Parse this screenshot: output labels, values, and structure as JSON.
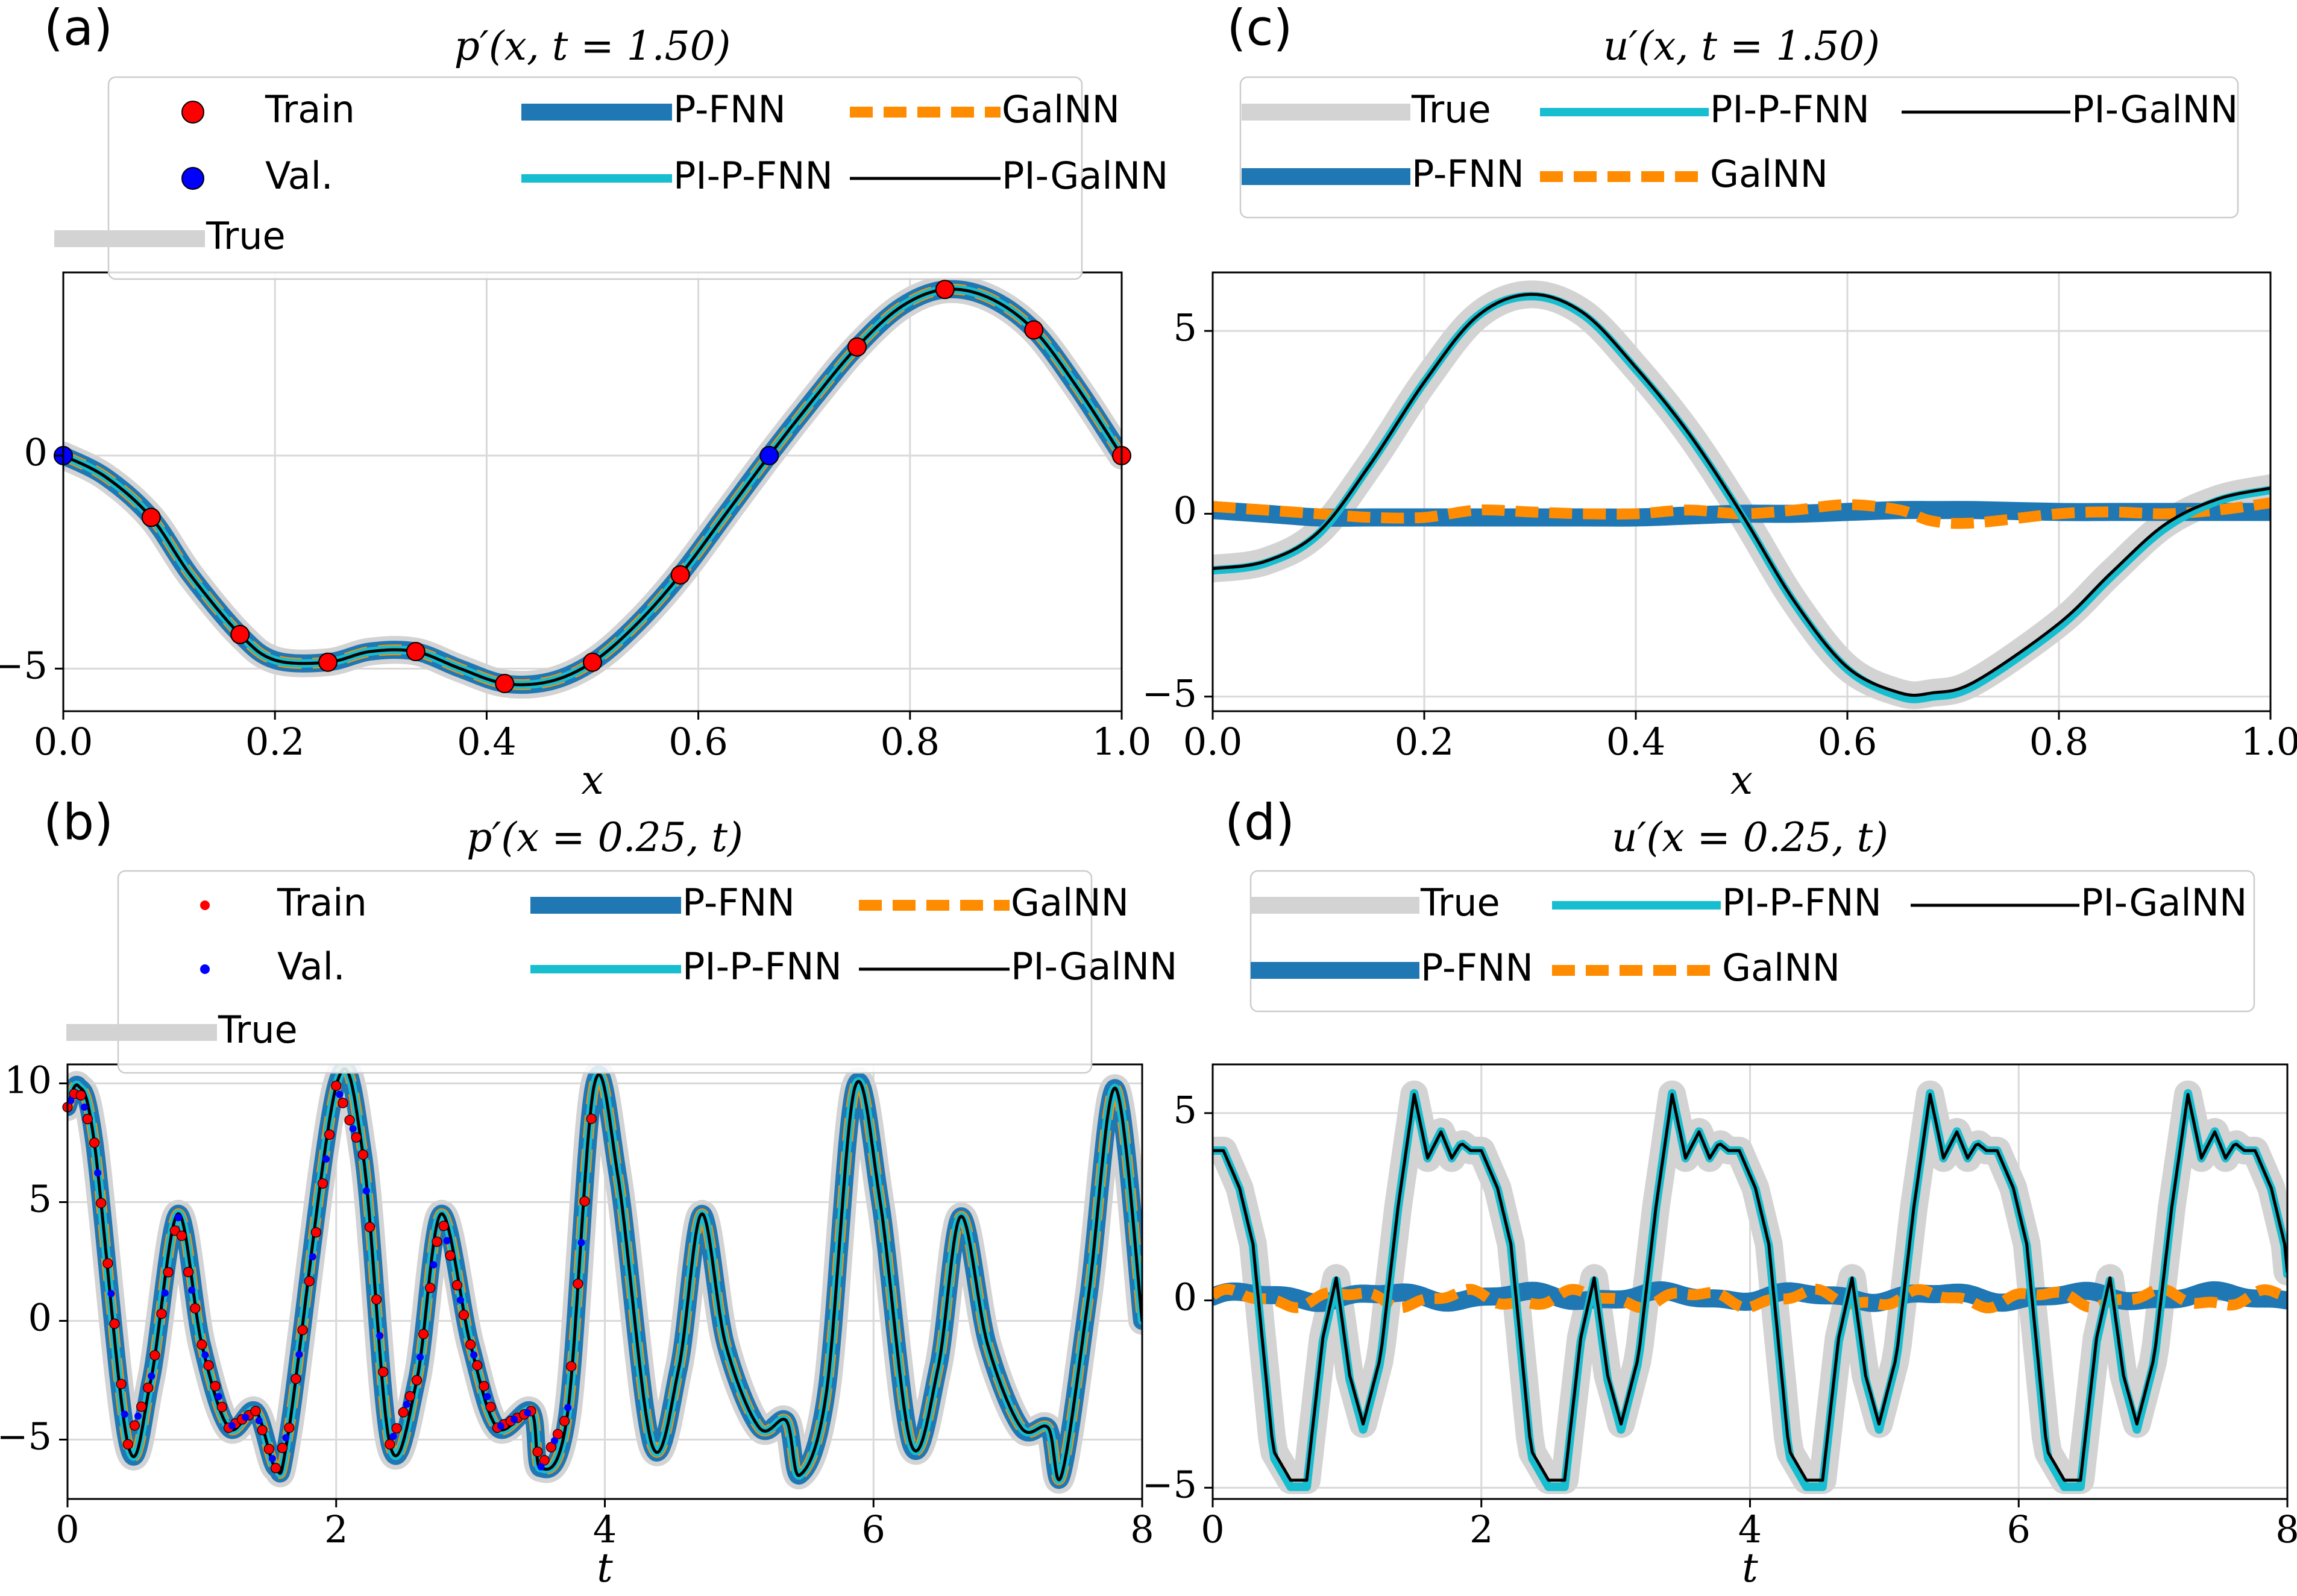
{
  "figure": {
    "colors": {
      "true": "#d3d3d3",
      "p_fnn": "#1f77b4",
      "galnn": "#ff8c00",
      "pi_p_fnn": "#17becf",
      "pi_galnn": "#000000",
      "train": "#ff0000",
      "val": "#0000ff",
      "grid": "#d9d9d9"
    }
  },
  "chart_data": [
    {
      "id": "a",
      "panel_label": "(a)",
      "type": "line",
      "title": "p′(x, t = 1.50)",
      "xlabel": "x",
      "ylabel": "",
      "xlim": [
        0,
        1
      ],
      "ylim": [
        -6,
        4.3
      ],
      "xticks": [
        0,
        0.2,
        0.4,
        0.6,
        0.8,
        1.0
      ],
      "xtick_labels": [
        "0.0",
        "0.2",
        "0.4",
        "0.6",
        "0.8",
        "1.0"
      ],
      "yticks": [
        -5,
        0
      ],
      "ytick_labels": [
        "−5",
        "0"
      ],
      "grid": true,
      "legend": {
        "placement": "top-left",
        "rows": [
          [
            {
              "label": "Train",
              "key": "train",
              "kind": "marker"
            },
            {
              "label": "P-FNN",
              "key": "p_fnn",
              "kind": "line"
            },
            {
              "label": "GalNN",
              "key": "galnn",
              "kind": "line"
            }
          ],
          [
            {
              "label": "Val.",
              "key": "val",
              "kind": "marker"
            },
            {
              "label": "PI-P-FNN",
              "key": "pi_p_fnn",
              "kind": "line"
            },
            {
              "label": "PI-GalNN",
              "key": "pi_galnn",
              "kind": "line"
            }
          ],
          [
            {
              "label": "True",
              "key": "true",
              "kind": "line"
            }
          ]
        ]
      },
      "x": [
        0,
        0.04,
        0.083,
        0.12,
        0.167,
        0.2,
        0.25,
        0.29,
        0.333,
        0.375,
        0.417,
        0.46,
        0.5,
        0.54,
        0.583,
        0.625,
        0.667,
        0.708,
        0.75,
        0.792,
        0.833,
        0.875,
        0.917,
        0.958,
        1.0
      ],
      "series": [
        {
          "name": "True",
          "key": "true",
          "y": [
            0,
            -0.5,
            -1.45,
            -2.8,
            -4.2,
            -4.8,
            -4.85,
            -4.6,
            -4.6,
            -5.0,
            -5.35,
            -5.3,
            -4.85,
            -4.0,
            -2.8,
            -1.4,
            0.0,
            1.3,
            2.55,
            3.5,
            3.9,
            3.7,
            2.95,
            1.6,
            0
          ]
        },
        {
          "name": "P-FNN",
          "key": "p_fnn",
          "y": [
            0,
            -0.5,
            -1.45,
            -2.8,
            -4.2,
            -4.8,
            -4.85,
            -4.6,
            -4.6,
            -5.0,
            -5.35,
            -5.3,
            -4.85,
            -4.0,
            -2.8,
            -1.4,
            0.0,
            1.3,
            2.55,
            3.5,
            3.9,
            3.7,
            2.95,
            1.6,
            0
          ]
        },
        {
          "name": "GalNN",
          "key": "galnn",
          "y": [
            0,
            -0.5,
            -1.45,
            -2.8,
            -4.2,
            -4.8,
            -4.85,
            -4.6,
            -4.6,
            -5.0,
            -5.35,
            -5.3,
            -4.85,
            -4.0,
            -2.8,
            -1.4,
            0.0,
            1.3,
            2.55,
            3.5,
            3.9,
            3.7,
            2.95,
            1.6,
            0
          ]
        },
        {
          "name": "PI-P-FNN",
          "key": "pi_p_fnn",
          "y": [
            0,
            -0.5,
            -1.45,
            -2.8,
            -4.2,
            -4.8,
            -4.85,
            -4.6,
            -4.6,
            -5.0,
            -5.35,
            -5.3,
            -4.85,
            -4.0,
            -2.8,
            -1.4,
            0.0,
            1.3,
            2.55,
            3.5,
            3.9,
            3.7,
            2.95,
            1.6,
            0
          ]
        },
        {
          "name": "PI-GalNN",
          "key": "pi_galnn",
          "y": [
            0,
            -0.5,
            -1.45,
            -2.8,
            -4.2,
            -4.8,
            -4.85,
            -4.6,
            -4.6,
            -5.0,
            -5.35,
            -5.3,
            -4.85,
            -4.0,
            -2.8,
            -1.4,
            0.0,
            1.3,
            2.55,
            3.5,
            3.9,
            3.7,
            2.95,
            1.6,
            0
          ]
        }
      ],
      "train_points": {
        "x": [
          0.083,
          0.167,
          0.25,
          0.333,
          0.417,
          0.5,
          0.583,
          0.75,
          0.833,
          0.917,
          1.0
        ],
        "y": [
          -1.45,
          -4.2,
          -4.85,
          -4.6,
          -5.35,
          -4.85,
          -2.8,
          2.55,
          3.9,
          2.95,
          0
        ]
      },
      "val_points": {
        "x": [
          0,
          0.667
        ],
        "y": [
          0,
          0
        ]
      }
    },
    {
      "id": "b",
      "panel_label": "(b)",
      "type": "line",
      "title": "p′(x = 0.25, t)",
      "xlabel": "t",
      "ylabel": "",
      "xlim": [
        0,
        8
      ],
      "ylim": [
        -7.5,
        10.8
      ],
      "xticks": [
        0,
        2,
        4,
        6,
        8
      ],
      "xtick_labels": [
        "0",
        "2",
        "4",
        "6",
        "8"
      ],
      "yticks": [
        -5,
        0,
        5,
        10
      ],
      "ytick_labels": [
        "−5",
        "0",
        "5",
        "10"
      ],
      "grid": true,
      "legend": {
        "placement": "top-left",
        "rows": [
          [
            {
              "label": "Train",
              "key": "train",
              "kind": "marker"
            },
            {
              "label": "P-FNN",
              "key": "p_fnn",
              "kind": "line"
            },
            {
              "label": "GalNN",
              "key": "galnn",
              "kind": "line"
            }
          ],
          [
            {
              "label": "Val.",
              "key": "val",
              "kind": "marker"
            },
            {
              "label": "PI-P-FNN",
              "key": "pi_p_fnn",
              "kind": "line"
            },
            {
              "label": "PI-GalNN",
              "key": "pi_galnn",
              "kind": "line"
            }
          ],
          [
            {
              "label": "True",
              "key": "true",
              "kind": "line"
            }
          ]
        ]
      },
      "x": [
        0,
        0.08,
        0.2,
        0.45,
        0.62,
        0.82,
        1.0,
        1.2,
        1.4,
        1.55,
        1.65,
        2.0,
        2.2,
        2.4,
        2.6,
        2.78,
        3.0,
        3.2,
        3.45,
        3.52,
        3.72,
        3.92,
        4.1,
        4.35,
        4.55,
        4.72,
        4.9,
        5.15,
        5.35,
        5.45,
        5.65,
        5.86,
        6.05,
        6.28,
        6.48,
        6.65,
        6.85,
        7.1,
        7.3,
        7.4,
        7.6,
        7.8,
        8.0
      ],
      "series": [
        {
          "name": "True",
          "key": "true",
          "y": [
            9.0,
            9.9,
            7.5,
            -5.2,
            -2.5,
            4.5,
            -1.0,
            -4.5,
            -3.8,
            -6.2,
            -4.5,
            9.9,
            7.0,
            -5.2,
            -2.5,
            4.5,
            -1.0,
            -4.5,
            -3.8,
            -6.2,
            -4.0,
            9.9,
            6.0,
            -5.2,
            -2.0,
            4.5,
            -1.0,
            -4.5,
            -4.2,
            -6.5,
            -3.0,
            9.8,
            5.0,
            -5.2,
            -2.0,
            4.4,
            -1.0,
            -4.5,
            -4.5,
            -6.5,
            1.0,
            9.8,
            0.0
          ]
        },
        {
          "name": "P-FNN",
          "key": "p_fnn",
          "y": [
            9.0,
            9.9,
            7.5,
            -5.2,
            -2.5,
            4.5,
            -1.0,
            -4.5,
            -3.8,
            -6.2,
            -4.5,
            9.9,
            7.0,
            -5.2,
            -2.5,
            4.5,
            -1.0,
            -4.5,
            -3.8,
            -6.2,
            -4.0,
            9.9,
            6.0,
            -5.2,
            -2.0,
            4.5,
            -1.0,
            -4.5,
            -4.2,
            -6.5,
            -3.0,
            9.8,
            5.0,
            -5.2,
            -2.0,
            4.4,
            -1.0,
            -4.5,
            -4.5,
            -6.5,
            1.0,
            9.8,
            0.0
          ]
        },
        {
          "name": "GalNN",
          "key": "galnn",
          "y": [
            9.0,
            9.9,
            7.5,
            -5.2,
            -2.5,
            4.5,
            -1.0,
            -4.5,
            -3.8,
            -6.2,
            -4.5,
            9.9,
            7.0,
            -5.2,
            -2.5,
            4.5,
            -1.0,
            -4.5,
            -3.8,
            -6.2,
            -4.0,
            9.9,
            6.0,
            -5.2,
            -2.0,
            4.5,
            -1.0,
            -4.5,
            -4.2,
            -6.5,
            -3.0,
            9.8,
            5.0,
            -5.2,
            -2.0,
            4.4,
            -1.0,
            -4.5,
            -4.5,
            -6.5,
            1.0,
            9.8,
            0.0
          ]
        },
        {
          "name": "PI-P-FNN",
          "key": "pi_p_fnn",
          "y": [
            9.0,
            9.9,
            7.5,
            -5.2,
            -2.5,
            4.5,
            -1.0,
            -4.5,
            -3.8,
            -6.2,
            -4.5,
            9.9,
            7.0,
            -5.2,
            -2.5,
            4.5,
            -1.0,
            -4.5,
            -3.8,
            -6.2,
            -4.0,
            9.9,
            6.0,
            -5.2,
            -2.0,
            4.5,
            -1.0,
            -4.5,
            -4.2,
            -6.5,
            -3.0,
            9.8,
            5.0,
            -5.2,
            -2.0,
            4.4,
            -1.0,
            -4.5,
            -4.5,
            -6.5,
            1.0,
            9.8,
            0.0
          ]
        },
        {
          "name": "PI-GalNN",
          "key": "pi_galnn",
          "y": [
            9.0,
            9.9,
            7.5,
            -5.2,
            -2.5,
            4.5,
            -1.0,
            -4.5,
            -3.8,
            -6.2,
            -4.5,
            9.9,
            7.0,
            -5.2,
            -2.5,
            4.5,
            -1.0,
            -4.5,
            -3.8,
            -6.2,
            -4.0,
            9.9,
            6.0,
            -5.2,
            -2.0,
            4.5,
            -1.0,
            -4.5,
            -4.2,
            -6.5,
            -3.0,
            9.8,
            5.0,
            -5.2,
            -2.0,
            4.4,
            -1.0,
            -4.5,
            -4.5,
            -6.5,
            1.0,
            9.8,
            0.0
          ]
        }
      ],
      "train_points": {
        "x_range": [
          0,
          3.92
        ],
        "step": 0.05
      },
      "val_points": {
        "x_range": [
          0.025,
          3.9
        ],
        "step": 0.1
      }
    },
    {
      "id": "c",
      "panel_label": "(c)",
      "type": "line",
      "title": "u′(x, t = 1.50)",
      "xlabel": "x",
      "ylabel": "",
      "xlim": [
        0,
        1
      ],
      "ylim": [
        -5.4,
        6.6
      ],
      "xticks": [
        0,
        0.2,
        0.4,
        0.6,
        0.8,
        1.0
      ],
      "xtick_labels": [
        "0.0",
        "0.2",
        "0.4",
        "0.6",
        "0.8",
        "1.0"
      ],
      "yticks": [
        -5,
        0,
        5
      ],
      "ytick_labels": [
        "−5",
        "0",
        "5"
      ],
      "grid": true,
      "legend": {
        "placement": "top",
        "rows": [
          [
            {
              "label": "True",
              "key": "true",
              "kind": "line"
            },
            {
              "label": "PI-P-FNN",
              "key": "pi_p_fnn",
              "kind": "line"
            },
            {
              "label": "PI-GalNN",
              "key": "pi_galnn",
              "kind": "line"
            }
          ],
          [
            {
              "label": "P-FNN",
              "key": "p_fnn",
              "kind": "line"
            },
            {
              "label": "GalNN",
              "key": "galnn",
              "kind": "line"
            }
          ]
        ]
      },
      "x": [
        0,
        0.05,
        0.1,
        0.15,
        0.2,
        0.25,
        0.3,
        0.35,
        0.4,
        0.45,
        0.5,
        0.55,
        0.6,
        0.65,
        0.68,
        0.72,
        0.8,
        0.85,
        0.9,
        0.95,
        1.0
      ],
      "series": [
        {
          "name": "True",
          "key": "true",
          "y": [
            -1.5,
            -1.3,
            -0.5,
            1.4,
            3.6,
            5.4,
            6.0,
            5.5,
            4.0,
            2.2,
            0.0,
            -2.4,
            -4.2,
            -4.9,
            -4.9,
            -4.6,
            -3.0,
            -1.6,
            -0.3,
            0.4,
            0.7
          ]
        },
        {
          "name": "P-FNN",
          "key": "p_fnn",
          "y": [
            0.1,
            0.0,
            -0.1,
            -0.1,
            -0.1,
            -0.1,
            -0.1,
            -0.1,
            -0.1,
            -0.05,
            0.0,
            0.0,
            0.05,
            0.1,
            0.1,
            0.1,
            0.05,
            0.05,
            0.05,
            0.05,
            0.05
          ]
        },
        {
          "name": "GalNN",
          "key": "galnn",
          "y": [
            0.2,
            0.1,
            0.0,
            -0.1,
            -0.1,
            0.1,
            0.05,
            0.0,
            0.0,
            0.1,
            0.0,
            0.1,
            0.25,
            0.1,
            -0.2,
            -0.25,
            0.0,
            0.05,
            0.0,
            0.1,
            0.3
          ]
        },
        {
          "name": "PI-P-FNN",
          "key": "pi_p_fnn",
          "y": [
            -1.55,
            -1.35,
            -0.55,
            1.4,
            3.6,
            5.4,
            5.95,
            5.45,
            3.95,
            2.15,
            -0.05,
            -2.45,
            -4.25,
            -5.0,
            -5.0,
            -4.7,
            -3.1,
            -1.7,
            -0.4,
            0.35,
            0.65
          ]
        },
        {
          "name": "PI-GalNN",
          "key": "pi_galnn",
          "y": [
            -1.5,
            -1.3,
            -0.5,
            1.4,
            3.6,
            5.4,
            6.0,
            5.5,
            4.0,
            2.2,
            0.0,
            -2.4,
            -4.2,
            -4.9,
            -4.9,
            -4.6,
            -3.0,
            -1.6,
            -0.3,
            0.4,
            0.7
          ]
        }
      ]
    },
    {
      "id": "d",
      "panel_label": "(d)",
      "type": "line",
      "title": "u′(x = 0.25, t)",
      "xlabel": "t",
      "ylabel": "",
      "xlim": [
        0,
        8
      ],
      "ylim": [
        -5.3,
        6.3
      ],
      "xticks": [
        0,
        2,
        4,
        6,
        8
      ],
      "xtick_labels": [
        "0",
        "2",
        "4",
        "6",
        "8"
      ],
      "yticks": [
        -5,
        0,
        5
      ],
      "ytick_labels": [
        "−5",
        "0",
        "5"
      ],
      "grid": true,
      "legend": {
        "placement": "top",
        "rows": [
          [
            {
              "label": "True",
              "key": "true",
              "kind": "line"
            },
            {
              "label": "PI-P-FNN",
              "key": "pi_p_fnn",
              "kind": "line"
            },
            {
              "label": "PI-GalNN",
              "key": "pi_galnn",
              "kind": "line"
            }
          ],
          [
            {
              "label": "P-FNN",
              "key": "p_fnn",
              "kind": "line"
            },
            {
              "label": "GalNN",
              "key": "galnn",
              "kind": "line"
            }
          ]
        ]
      },
      "period": 1.92,
      "base_t": [
        0,
        0.08,
        0.2,
        0.3,
        0.45,
        0.58,
        0.7,
        0.82,
        0.92,
        1.02,
        1.12,
        1.25,
        1.38,
        1.5,
        1.6,
        1.7,
        1.78,
        1.85,
        1.92
      ],
      "base_y": [
        4.0,
        4.0,
        3.0,
        1.5,
        -4.0,
        -4.8,
        -4.8,
        -1.0,
        0.6,
        -2.0,
        -3.3,
        -1.5,
        2.5,
        5.5,
        3.8,
        4.5,
        3.8,
        4.2,
        4.0
      ],
      "series": [
        {
          "name": "True",
          "key": "true",
          "profile": "periodic"
        },
        {
          "name": "P-FNN",
          "key": "p_fnn",
          "profile": "near-zero"
        },
        {
          "name": "GalNN",
          "key": "galnn",
          "profile": "near-zero"
        },
        {
          "name": "PI-P-FNN",
          "key": "pi_p_fnn",
          "profile": "periodic"
        },
        {
          "name": "PI-GalNN",
          "key": "pi_galnn",
          "profile": "periodic"
        }
      ]
    }
  ]
}
